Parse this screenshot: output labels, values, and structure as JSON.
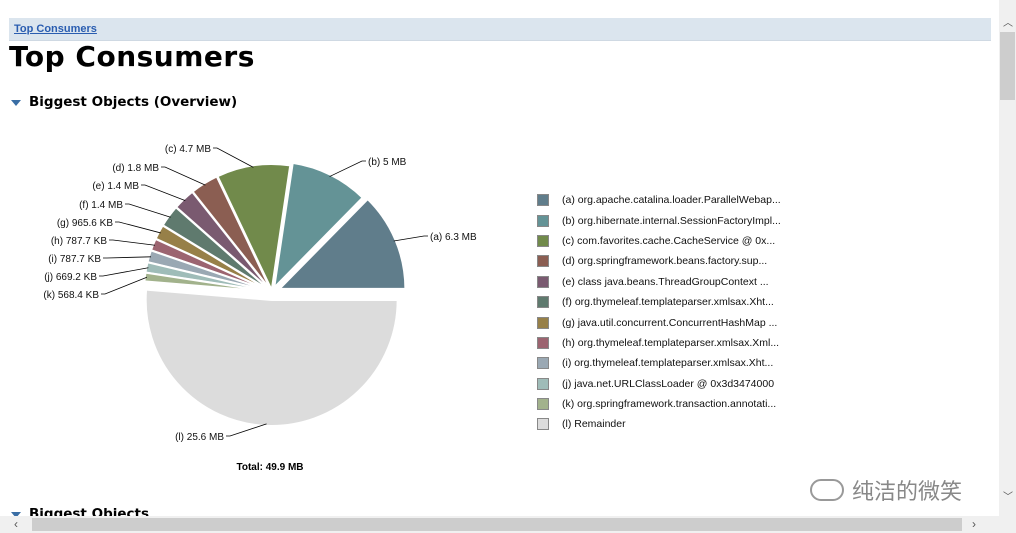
{
  "breadcrumb": {
    "link": "Top Consumers"
  },
  "page_title": "Top Consumers",
  "sections": [
    {
      "label": "Biggest Objects (Overview)"
    },
    {
      "label": "Biggest Objects"
    }
  ],
  "chart_data": {
    "type": "pie",
    "title": "",
    "total_label": "Total: 49.9 MB",
    "slices": [
      {
        "key": "a",
        "label": "(a)  6.3 MB",
        "value": 6.3,
        "legend": "(a)  org.apache.catalina.loader.ParallelWebap...",
        "color": "#607d8b"
      },
      {
        "key": "b",
        "label": "(b)  5 MB",
        "value": 5.0,
        "legend": "(b)  org.hibernate.internal.SessionFactoryImpl...",
        "color": "#649396"
      },
      {
        "key": "c",
        "label": "(c)  4.7 MB",
        "value": 4.7,
        "legend": "(c)  com.favorites.cache.CacheService @ 0x...",
        "color": "#718a4b"
      },
      {
        "key": "d",
        "label": "(d)  1.8 MB",
        "value": 1.8,
        "legend": "(d)  org.springframework.beans.factory.sup...",
        "color": "#8b5e52"
      },
      {
        "key": "e",
        "label": "(e)  1.4 MB",
        "value": 1.4,
        "legend": "(e)  class java.beans.ThreadGroupContext ...",
        "color": "#7a5a70"
      },
      {
        "key": "f",
        "label": "(f)  1.4 MB",
        "value": 1.4,
        "legend": "(f)  org.thymeleaf.templateparser.xmlsax.Xht...",
        "color": "#5f7a6e"
      },
      {
        "key": "g",
        "label": "(g)  965.6 KB",
        "value": 0.943,
        "legend": "(g)  java.util.concurrent.ConcurrentHashMap ...",
        "color": "#978048"
      },
      {
        "key": "h",
        "label": "(h)  787.7 KB",
        "value": 0.769,
        "legend": "(h)  org.thymeleaf.templateparser.xmlsax.Xml...",
        "color": "#9c6470"
      },
      {
        "key": "i",
        "label": "(i)  787.7 KB",
        "value": 0.769,
        "legend": "(i)  org.thymeleaf.templateparser.xmlsax.Xht...",
        "color": "#9aa8b3"
      },
      {
        "key": "j",
        "label": "(j)  669.2 KB",
        "value": 0.654,
        "legend": "(j)  java.net.URLClassLoader @ 0x3d3474000",
        "color": "#9fbcb8"
      },
      {
        "key": "k",
        "label": "(k)  568.4 KB",
        "value": 0.555,
        "legend": "(k)  org.springframework.transaction.annotati...",
        "color": "#a2b28c"
      },
      {
        "key": "l",
        "label": "(l)  25.6 MB",
        "value": 25.6,
        "legend": "(l)  Remainder",
        "color": "#dcdcdc"
      }
    ]
  },
  "watermark": {
    "text": "纯洁的微笑"
  },
  "scrollbars": {
    "up": "︿",
    "down": "﹀",
    "left": "‹",
    "right": "›"
  }
}
